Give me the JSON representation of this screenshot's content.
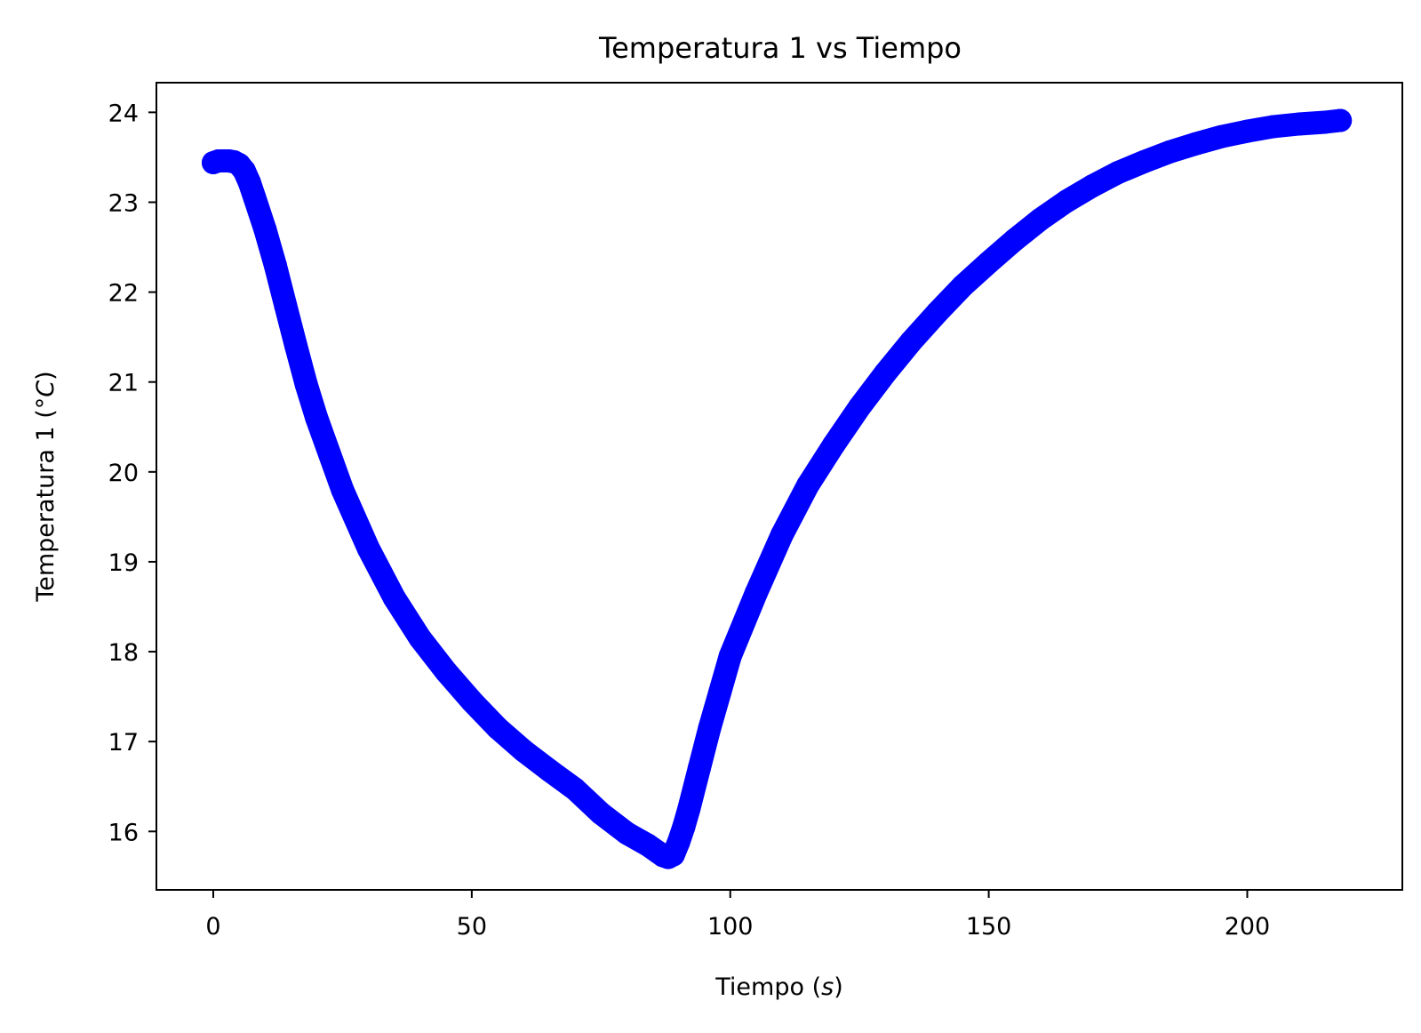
{
  "chart_data": {
    "type": "line",
    "title": "Temperatura 1 vs Tiempo",
    "xlabel": {
      "prefix": "Tiempo (",
      "var": "s",
      "suffix": ")"
    },
    "ylabel": {
      "prefix": "Temperatura 1 (°",
      "var": "C",
      "suffix": ")"
    },
    "xlim": [
      -11,
      230
    ],
    "ylim": [
      15.35,
      24.33
    ],
    "xticks": [
      0,
      50,
      100,
      150,
      200
    ],
    "yticks": [
      16,
      17,
      18,
      19,
      20,
      21,
      22,
      23,
      24
    ],
    "grid": false,
    "legend": "none",
    "series": [
      {
        "color": "#0000ff",
        "marker": "circle",
        "points": [
          [
            0,
            23.44
          ],
          [
            1,
            23.46
          ],
          [
            2,
            23.46
          ],
          [
            3,
            23.46
          ],
          [
            4,
            23.45
          ],
          [
            5,
            23.42
          ],
          [
            6,
            23.35
          ],
          [
            7,
            23.22
          ],
          [
            8,
            23.05
          ],
          [
            10,
            22.7
          ],
          [
            12,
            22.3
          ],
          [
            14,
            21.85
          ],
          [
            16,
            21.4
          ],
          [
            18,
            20.97
          ],
          [
            20,
            20.6
          ],
          [
            25,
            19.8
          ],
          [
            30,
            19.15
          ],
          [
            35,
            18.6
          ],
          [
            40,
            18.15
          ],
          [
            45,
            17.78
          ],
          [
            50,
            17.45
          ],
          [
            55,
            17.15
          ],
          [
            60,
            16.9
          ],
          [
            65,
            16.68
          ],
          [
            70,
            16.47
          ],
          [
            75,
            16.2
          ],
          [
            80,
            15.98
          ],
          [
            84,
            15.85
          ],
          [
            86,
            15.77
          ],
          [
            87,
            15.73
          ],
          [
            88,
            15.71
          ],
          [
            89,
            15.74
          ],
          [
            90,
            15.88
          ],
          [
            91,
            16.05
          ],
          [
            92,
            16.25
          ],
          [
            94,
            16.7
          ],
          [
            96,
            17.15
          ],
          [
            98,
            17.55
          ],
          [
            100,
            17.95
          ],
          [
            105,
            18.65
          ],
          [
            110,
            19.3
          ],
          [
            115,
            19.85
          ],
          [
            120,
            20.3
          ],
          [
            125,
            20.72
          ],
          [
            130,
            21.1
          ],
          [
            135,
            21.45
          ],
          [
            140,
            21.77
          ],
          [
            145,
            22.07
          ],
          [
            150,
            22.33
          ],
          [
            155,
            22.58
          ],
          [
            160,
            22.81
          ],
          [
            165,
            23.01
          ],
          [
            170,
            23.18
          ],
          [
            175,
            23.33
          ],
          [
            180,
            23.45
          ],
          [
            185,
            23.56
          ],
          [
            190,
            23.65
          ],
          [
            195,
            23.73
          ],
          [
            200,
            23.79
          ],
          [
            205,
            23.84
          ],
          [
            210,
            23.87
          ],
          [
            215,
            23.89
          ],
          [
            218,
            23.91
          ]
        ]
      }
    ]
  }
}
